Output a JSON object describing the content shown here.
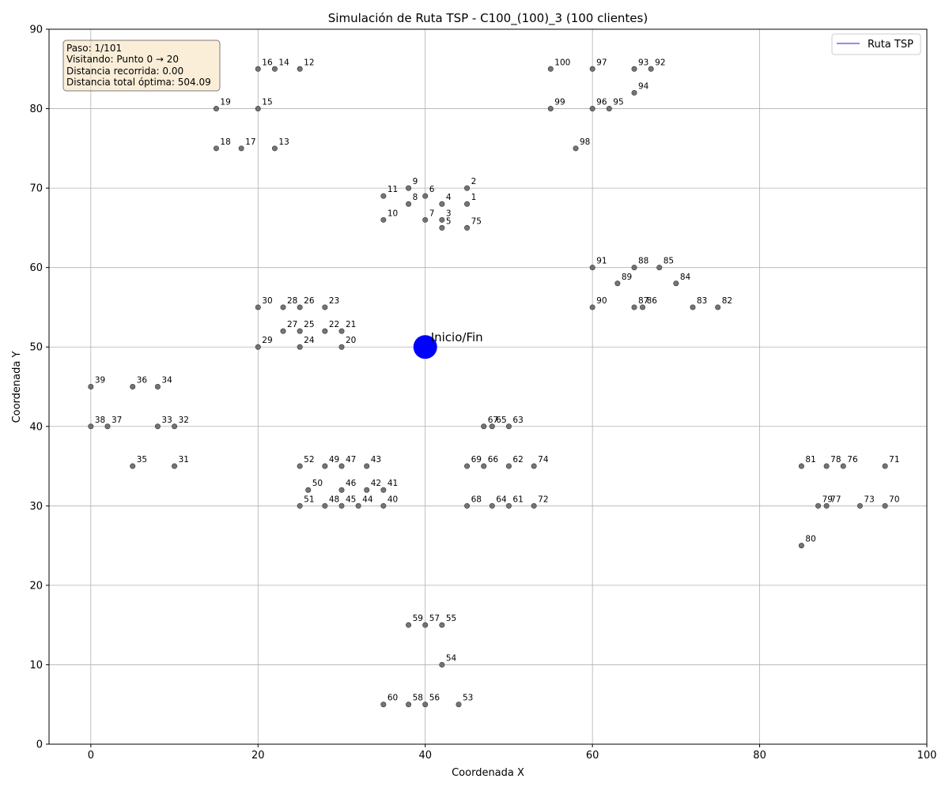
{
  "chart_data": {
    "type": "scatter",
    "title": "Simulación de Ruta TSP - C100_(100)_3 (100 clientes)",
    "xlabel": "Coordenada X",
    "ylabel": "Coordenada Y",
    "xlim": [
      -5,
      100
    ],
    "ylim": [
      0,
      90
    ],
    "xticks": [
      0,
      20,
      40,
      60,
      80,
      100
    ],
    "yticks": [
      0,
      10,
      20,
      30,
      40,
      50,
      60,
      70,
      80,
      90
    ],
    "grid": true,
    "legend": {
      "placement": "top-right",
      "entries": [
        {
          "label": "Ruta TSP",
          "color": "#6666ff"
        }
      ]
    },
    "depot": {
      "label": "Inicio/Fin",
      "x": 40,
      "y": 50,
      "color": "#0000ff"
    },
    "point_color": "#666666",
    "info_box": {
      "lines": [
        "Paso: 1/101",
        "Visitando: Punto 0 → 20",
        "Distancia recorrida: 0.00",
        "Distancia total óptima: 504.09"
      ]
    },
    "points": [
      {
        "id": "1",
        "x": 45,
        "y": 68
      },
      {
        "id": "2",
        "x": 45,
        "y": 70
      },
      {
        "id": "3",
        "x": 42,
        "y": 66
      },
      {
        "id": "4",
        "x": 42,
        "y": 68
      },
      {
        "id": "5",
        "x": 42,
        "y": 65
      },
      {
        "id": "6",
        "x": 40,
        "y": 69
      },
      {
        "id": "7",
        "x": 40,
        "y": 66
      },
      {
        "id": "8",
        "x": 38,
        "y": 68
      },
      {
        "id": "9",
        "x": 38,
        "y": 70
      },
      {
        "id": "10",
        "x": 35,
        "y": 66
      },
      {
        "id": "11",
        "x": 35,
        "y": 69
      },
      {
        "id": "12",
        "x": 25,
        "y": 85
      },
      {
        "id": "13",
        "x": 22,
        "y": 75
      },
      {
        "id": "14",
        "x": 22,
        "y": 85
      },
      {
        "id": "15",
        "x": 20,
        "y": 80
      },
      {
        "id": "16",
        "x": 20,
        "y": 85
      },
      {
        "id": "17",
        "x": 18,
        "y": 75
      },
      {
        "id": "18",
        "x": 15,
        "y": 75
      },
      {
        "id": "19",
        "x": 15,
        "y": 80
      },
      {
        "id": "20",
        "x": 30,
        "y": 50
      },
      {
        "id": "21",
        "x": 30,
        "y": 52
      },
      {
        "id": "22",
        "x": 28,
        "y": 52
      },
      {
        "id": "23",
        "x": 28,
        "y": 55
      },
      {
        "id": "24",
        "x": 25,
        "y": 50
      },
      {
        "id": "25",
        "x": 25,
        "y": 52
      },
      {
        "id": "26",
        "x": 25,
        "y": 55
      },
      {
        "id": "27",
        "x": 23,
        "y": 52
      },
      {
        "id": "28",
        "x": 23,
        "y": 55
      },
      {
        "id": "29",
        "x": 20,
        "y": 50
      },
      {
        "id": "30",
        "x": 20,
        "y": 55
      },
      {
        "id": "31",
        "x": 10,
        "y": 35
      },
      {
        "id": "32",
        "x": 10,
        "y": 40
      },
      {
        "id": "33",
        "x": 8,
        "y": 40
      },
      {
        "id": "34",
        "x": 8,
        "y": 45
      },
      {
        "id": "35",
        "x": 5,
        "y": 35
      },
      {
        "id": "36",
        "x": 5,
        "y": 45
      },
      {
        "id": "37",
        "x": 2,
        "y": 40
      },
      {
        "id": "38",
        "x": 0,
        "y": 40
      },
      {
        "id": "39",
        "x": 0,
        "y": 45
      },
      {
        "id": "40",
        "x": 35,
        "y": 30
      },
      {
        "id": "41",
        "x": 35,
        "y": 32
      },
      {
        "id": "42",
        "x": 33,
        "y": 32
      },
      {
        "id": "43",
        "x": 33,
        "y": 35
      },
      {
        "id": "44",
        "x": 32,
        "y": 30
      },
      {
        "id": "45",
        "x": 30,
        "y": 30
      },
      {
        "id": "46",
        "x": 30,
        "y": 32
      },
      {
        "id": "47",
        "x": 30,
        "y": 35
      },
      {
        "id": "48",
        "x": 28,
        "y": 30
      },
      {
        "id": "49",
        "x": 28,
        "y": 35
      },
      {
        "id": "50",
        "x": 26,
        "y": 32
      },
      {
        "id": "51",
        "x": 25,
        "y": 30
      },
      {
        "id": "52",
        "x": 25,
        "y": 35
      },
      {
        "id": "53",
        "x": 44,
        "y": 5
      },
      {
        "id": "54",
        "x": 42,
        "y": 10
      },
      {
        "id": "55",
        "x": 42,
        "y": 15
      },
      {
        "id": "56",
        "x": 40,
        "y": 5
      },
      {
        "id": "57",
        "x": 40,
        "y": 15
      },
      {
        "id": "58",
        "x": 38,
        "y": 5
      },
      {
        "id": "59",
        "x": 38,
        "y": 15
      },
      {
        "id": "60",
        "x": 35,
        "y": 5
      },
      {
        "id": "61",
        "x": 50,
        "y": 30
      },
      {
        "id": "62",
        "x": 50,
        "y": 35
      },
      {
        "id": "63",
        "x": 50,
        "y": 40
      },
      {
        "id": "64",
        "x": 48,
        "y": 30
      },
      {
        "id": "65",
        "x": 48,
        "y": 40
      },
      {
        "id": "66",
        "x": 47,
        "y": 35
      },
      {
        "id": "67",
        "x": 47,
        "y": 40
      },
      {
        "id": "68",
        "x": 45,
        "y": 30
      },
      {
        "id": "69",
        "x": 45,
        "y": 35
      },
      {
        "id": "70",
        "x": 95,
        "y": 30
      },
      {
        "id": "71",
        "x": 95,
        "y": 35
      },
      {
        "id": "72",
        "x": 53,
        "y": 30
      },
      {
        "id": "73",
        "x": 92,
        "y": 30
      },
      {
        "id": "74",
        "x": 53,
        "y": 35
      },
      {
        "id": "75",
        "x": 45,
        "y": 65
      },
      {
        "id": "76",
        "x": 90,
        "y": 35
      },
      {
        "id": "77",
        "x": 88,
        "y": 30
      },
      {
        "id": "78",
        "x": 88,
        "y": 35
      },
      {
        "id": "79",
        "x": 87,
        "y": 30
      },
      {
        "id": "80",
        "x": 85,
        "y": 25
      },
      {
        "id": "81",
        "x": 85,
        "y": 35
      },
      {
        "id": "82",
        "x": 75,
        "y": 55
      },
      {
        "id": "83",
        "x": 72,
        "y": 55
      },
      {
        "id": "84",
        "x": 70,
        "y": 58
      },
      {
        "id": "85",
        "x": 68,
        "y": 60
      },
      {
        "id": "86",
        "x": 66,
        "y": 55
      },
      {
        "id": "87",
        "x": 65,
        "y": 55
      },
      {
        "id": "88",
        "x": 65,
        "y": 60
      },
      {
        "id": "89",
        "x": 63,
        "y": 58
      },
      {
        "id": "90",
        "x": 60,
        "y": 55
      },
      {
        "id": "91",
        "x": 60,
        "y": 60
      },
      {
        "id": "92",
        "x": 67,
        "y": 85
      },
      {
        "id": "93",
        "x": 65,
        "y": 85
      },
      {
        "id": "94",
        "x": 65,
        "y": 82
      },
      {
        "id": "95",
        "x": 62,
        "y": 80
      },
      {
        "id": "96",
        "x": 60,
        "y": 80
      },
      {
        "id": "97",
        "x": 60,
        "y": 85
      },
      {
        "id": "98",
        "x": 58,
        "y": 75
      },
      {
        "id": "99",
        "x": 55,
        "y": 80
      },
      {
        "id": "100",
        "x": 55,
        "y": 85
      }
    ]
  }
}
